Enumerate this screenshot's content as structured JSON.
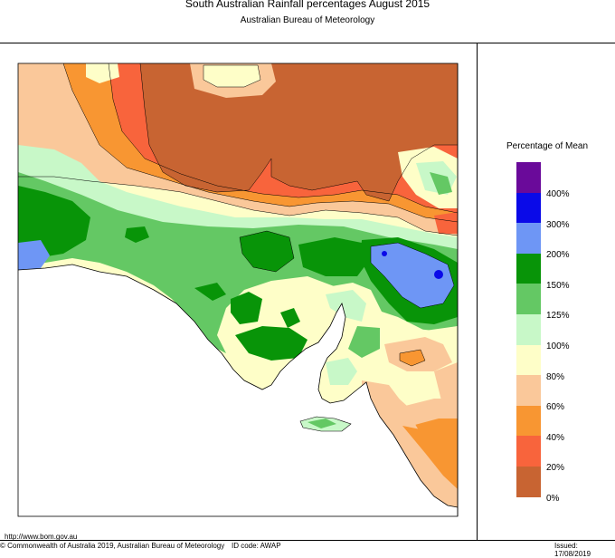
{
  "header": {
    "title": "South Australian Rainfall percentages   August 2015",
    "subtitle": "Australian Bureau of Meteorology"
  },
  "legend": {
    "title": "Percentage of Mean",
    "bands": [
      {
        "label": "400%",
        "color": "#6a0a9a"
      },
      {
        "label": "300%",
        "color": "#0a0ae8"
      },
      {
        "label": "200%",
        "color": "#6e96f5"
      },
      {
        "label": "150%",
        "color": "#089408"
      },
      {
        "label": "125%",
        "color": "#64c864"
      },
      {
        "label": "100%",
        "color": "#c8f8c8"
      },
      {
        "label": "80%",
        "color": "#fefec8"
      },
      {
        "label": "60%",
        "color": "#fac89a"
      },
      {
        "label": "40%",
        "color": "#f89632"
      },
      {
        "label": "20%",
        "color": "#f8643c"
      },
      {
        "label": "0%",
        "color": "#c86432"
      }
    ]
  },
  "footer": {
    "url": "http://www.bom.gov.au",
    "copyright": "© Commonwealth of Australia 2019, Australian Bureau of Meteorology",
    "id_code": "ID code: AWAP",
    "issued": "Issued: 17/08/2019"
  }
}
